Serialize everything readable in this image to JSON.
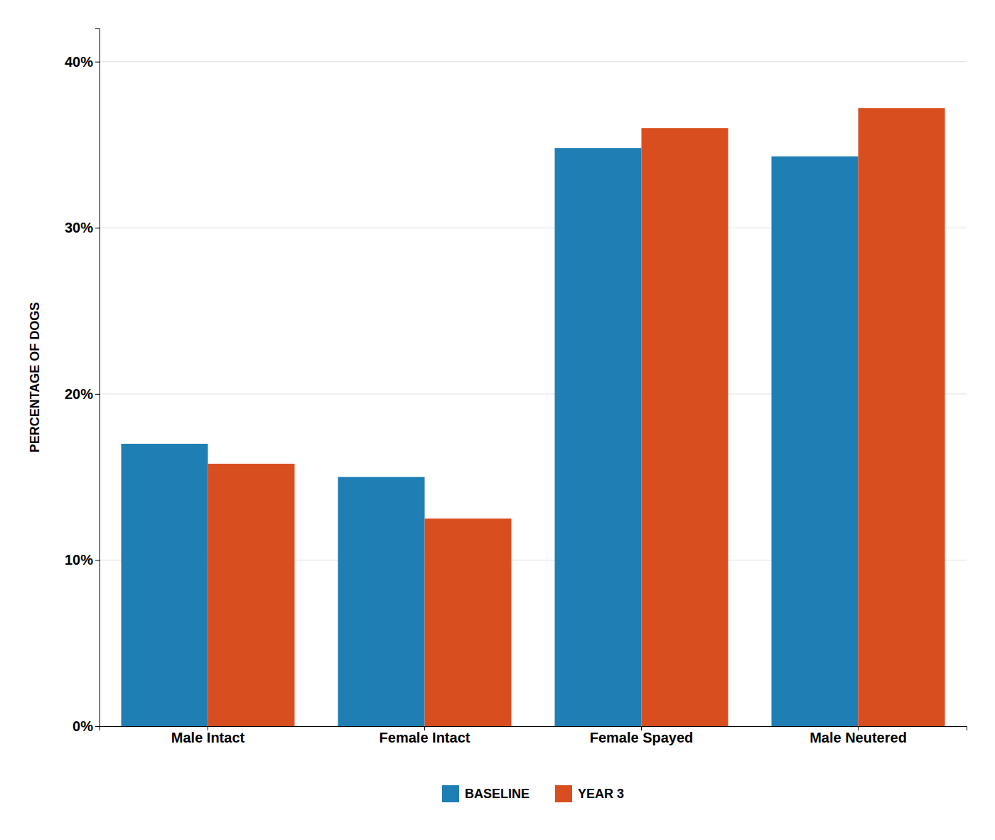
{
  "chart_data": {
    "type": "bar",
    "y_label": "PERCENTAGE OF DOGS",
    "categories": [
      "Male Intact",
      "Female Intact",
      "Female Spayed",
      "Male Neutered"
    ],
    "series": [
      {
        "name": "BASELINE",
        "color": "#1f7fb4",
        "values": [
          17.0,
          15.0,
          34.8,
          34.3
        ]
      },
      {
        "name": "YEAR 3",
        "color": "#d94e1f",
        "values": [
          15.8,
          12.5,
          36.0,
          37.2
        ]
      }
    ],
    "ylim": [
      0,
      42
    ],
    "yticks": [
      {
        "value": 0,
        "label": "0%"
      },
      {
        "value": 10,
        "label": "10%"
      },
      {
        "value": 20,
        "label": "20%"
      },
      {
        "value": 30,
        "label": "30%"
      },
      {
        "value": 40,
        "label": "40%"
      }
    ],
    "grid": true,
    "legend": "bottom"
  }
}
